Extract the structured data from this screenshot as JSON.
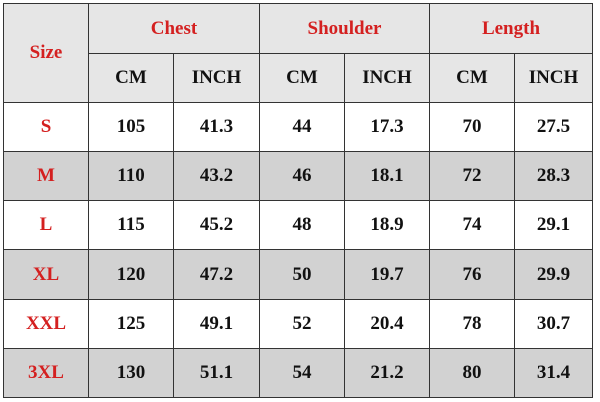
{
  "header": {
    "size": "Size",
    "groups": [
      "Chest",
      "Shoulder",
      "Length"
    ],
    "units": [
      "CM",
      "INCH",
      "CM",
      "INCH",
      "CM",
      "INCH"
    ]
  },
  "rows": [
    {
      "size": "S",
      "values": [
        "105",
        "41.3",
        "44",
        "17.3",
        "70",
        "27.5"
      ]
    },
    {
      "size": "M",
      "values": [
        "110",
        "43.2",
        "46",
        "18.1",
        "72",
        "28.3"
      ]
    },
    {
      "size": "L",
      "values": [
        "115",
        "45.2",
        "48",
        "18.9",
        "74",
        "29.1"
      ]
    },
    {
      "size": "XL",
      "values": [
        "120",
        "47.2",
        "50",
        "19.7",
        "76",
        "29.9"
      ]
    },
    {
      "size": "XXL",
      "values": [
        "125",
        "49.1",
        "52",
        "20.4",
        "78",
        "30.7"
      ]
    },
    {
      "size": "3XL",
      "values": [
        "130",
        "51.1",
        "54",
        "21.2",
        "80",
        "31.4"
      ]
    }
  ],
  "colors": {
    "label": "#d42020",
    "header_bg": "#e6e6e6",
    "alt_row_bg": "#d2d2d2"
  }
}
